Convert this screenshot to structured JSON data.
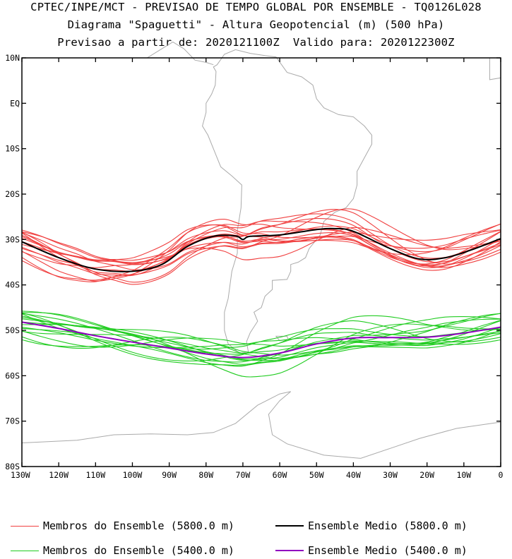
{
  "header": {
    "line1": "CPTEC/INPE/MCT - PREVISAO DE TEMPO GLOBAL POR ENSEMBLE - TQ0126L028",
    "line2": "Diagrama \"Spaguetti\" - Altura Geopotencial (m) (500 hPa)",
    "line3": "Previsao a partir de: 2020121100Z  Valido para: 2020122300Z"
  },
  "map": {
    "lat_labels": [
      "10N",
      "EQ",
      "10S",
      "20S",
      "30S",
      "40S",
      "50S",
      "60S",
      "70S",
      "80S"
    ],
    "lat_values": [
      10,
      0,
      -10,
      -20,
      -30,
      -40,
      -50,
      -60,
      -70,
      -80
    ],
    "lon_labels": [
      "130W",
      "120W",
      "110W",
      "100W",
      "90W",
      "80W",
      "70W",
      "60W",
      "50W",
      "40W",
      "30W",
      "20W",
      "10W",
      "0"
    ],
    "lon_values": [
      -130,
      -120,
      -110,
      -100,
      -90,
      -80,
      -70,
      -60,
      -50,
      -40,
      -30,
      -20,
      -10,
      0
    ],
    "lon_range": [
      -130,
      0
    ],
    "lat_range": [
      -80,
      10
    ],
    "colors": {
      "member_5800": "#f04040",
      "mean_5800": "#000000",
      "member_5400": "#20cc20",
      "mean_5400": "#9000c0",
      "coast": "#aaaaaa"
    },
    "mean_5800": [
      [
        -130,
        -30.5
      ],
      [
        -120,
        -34
      ],
      [
        -110,
        -36.5
      ],
      [
        -100,
        -37
      ],
      [
        -92,
        -35.5
      ],
      [
        -85,
        -31.5
      ],
      [
        -78,
        -29.3
      ],
      [
        -72,
        -29.2
      ],
      [
        -70,
        -30
      ],
      [
        -68,
        -29.3
      ],
      [
        -60,
        -29
      ],
      [
        -50,
        -27.8
      ],
      [
        -45,
        -27.6
      ],
      [
        -40,
        -28.2
      ],
      [
        -30,
        -32
      ],
      [
        -22,
        -34.3
      ],
      [
        -15,
        -34
      ],
      [
        -8,
        -32.3
      ],
      [
        0,
        -29.8
      ]
    ],
    "mean_5400": [
      [
        -130,
        -48.2
      ],
      [
        -120,
        -49.6
      ],
      [
        -110,
        -51.2
      ],
      [
        -100,
        -52.6
      ],
      [
        -90,
        -53.9
      ],
      [
        -80,
        -55.2
      ],
      [
        -70,
        -56
      ],
      [
        -60,
        -55
      ],
      [
        -50,
        -53
      ],
      [
        -40,
        -51.7
      ],
      [
        -30,
        -51.6
      ],
      [
        -20,
        -51.5
      ],
      [
        -10,
        -50.6
      ],
      [
        0,
        -49.3
      ]
    ]
  },
  "legend": {
    "item1": "Membros do Ensemble (5800.0 m)",
    "item2": "Ensemble Medio (5800.0 m)",
    "item3": "Membros do Ensemble (5400.0 m)",
    "item4": "Ensemble Medio (5400.0 m)"
  }
}
